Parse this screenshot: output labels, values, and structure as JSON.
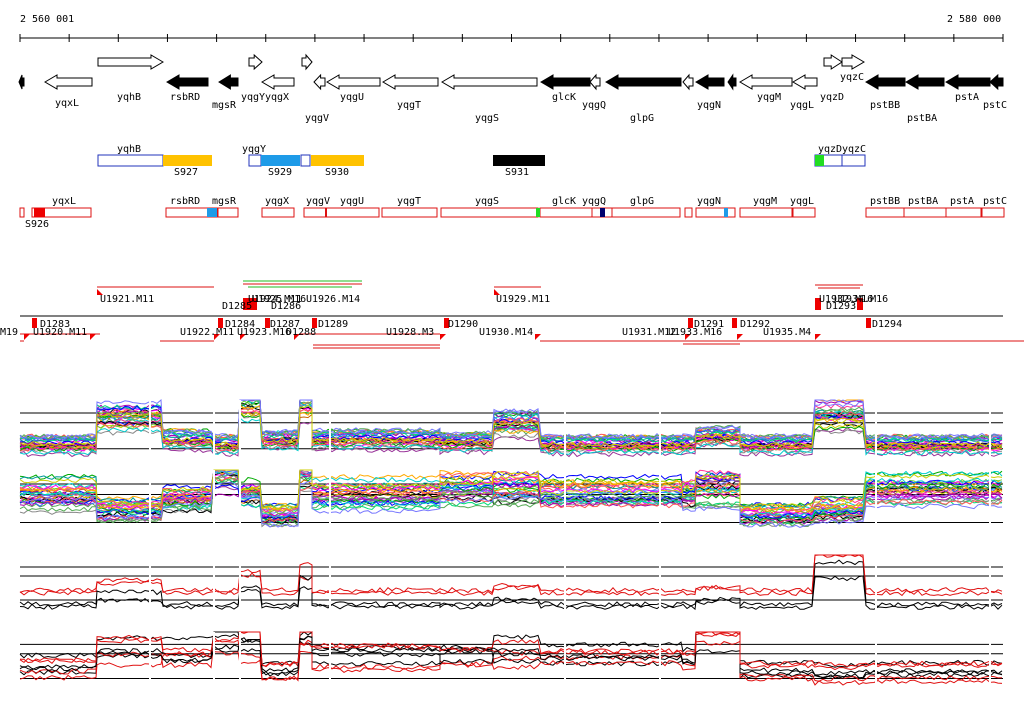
{
  "ruler": {
    "start_label": "2 560 001",
    "end_label": "2 580 000"
  },
  "colors": {
    "gene_fill_dark": "#000000",
    "gene_fill_light": "#ffffff",
    "segment_yellow": "#ffc200",
    "segment_blue": "#1e9be8",
    "segment_green": "#22dd22",
    "segment_navy": "#00006e",
    "outline_blue": "#2233bb",
    "outline_red": "#dd1111",
    "marker_red": "#ee0000",
    "bracket_green": "#22bb22",
    "trace_black": "#000000",
    "trace_red": "#e01010"
  },
  "genes_label_row_top": [
    "yqxL",
    "yqhB",
    "rsbRD",
    "mgsR",
    "yqgY",
    "yqgX",
    "yqgV",
    "yqgU",
    "yqgT",
    "yqgS",
    "glcK",
    "yqgQ",
    "glpG",
    "yqgN",
    "yqgM",
    "yqgL",
    "yqzD",
    "yqzC",
    "pstBB",
    "pstBA",
    "pstA",
    "pstC"
  ],
  "segments": [
    "S927",
    "S929",
    "S930",
    "S931",
    "S926"
  ],
  "blue_boxes": [
    "yqhB",
    "yqgY",
    "yqzD",
    "yqzC"
  ],
  "red_boxes": [
    "yqxL",
    "rsbRD",
    "mgsR",
    "yqgX",
    "yqgV",
    "yqgU",
    "yqgT",
    "yqgS",
    "glcK",
    "yqgQ",
    "glpG",
    "yqgN",
    "yqgM",
    "yqgL",
    "pstBB",
    "pstBA",
    "pstA",
    "pstC"
  ],
  "upper_features": [
    "U1921.M11",
    "U1924.M11",
    "D1285",
    "U1925.M16",
    "D1286",
    "U1926.M14",
    "U1929.M11",
    "U1932.M16",
    "U1934.M16",
    "D1293"
  ],
  "lower_features": [
    "M19",
    "D1283",
    "U1920.M11",
    "U1922.M11",
    "D1284",
    "U1923.M16",
    "D1287",
    "D1288",
    "D1289",
    "U1928.M3",
    "D1290",
    "U1930.M14",
    "U1931.M12",
    "U1933.M16",
    "D1291",
    "D1292",
    "U1935.M4",
    "D1294"
  ]
}
